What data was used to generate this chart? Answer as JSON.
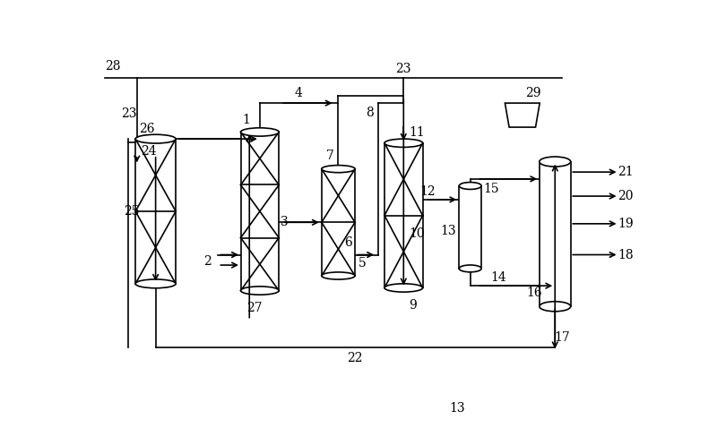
{
  "fig_width": 8.0,
  "fig_height": 4.78,
  "dpi": 100,
  "bg_color": "#ffffff",
  "line_color": "#000000",
  "lw": 1.2
}
